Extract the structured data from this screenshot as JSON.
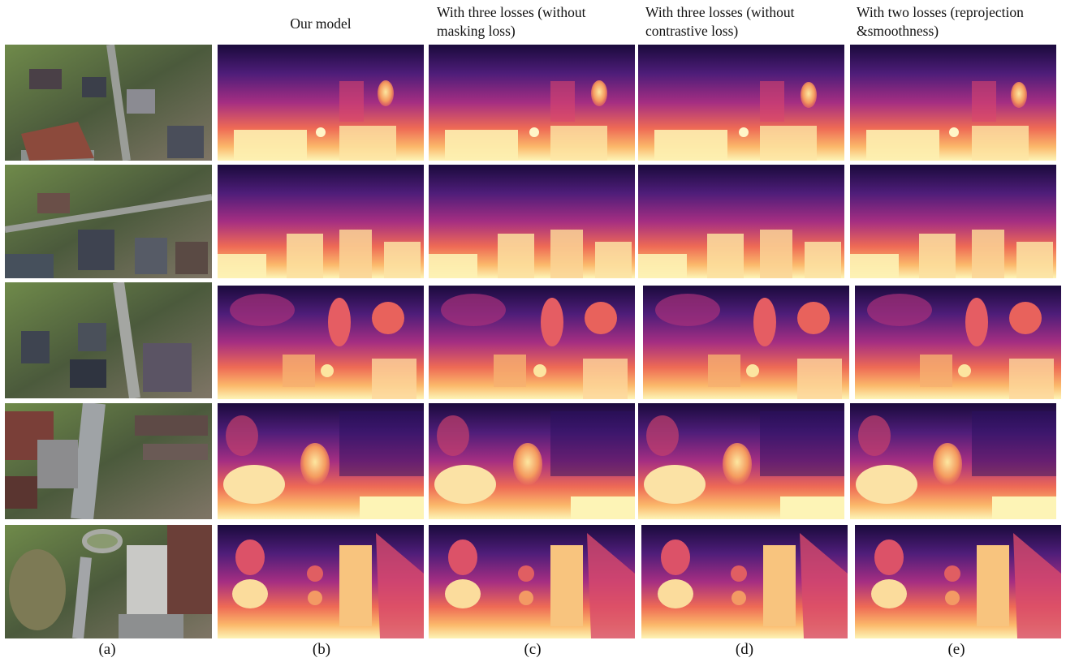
{
  "column_headers": {
    "b": "Our model",
    "c_line1": "With three losses (without",
    "c_line2": "masking loss)",
    "d_line1": "With three losses (without",
    "d_line2": "contrastive loss)",
    "e_line1": "With two losses (reprojection",
    "e_line2": "&smoothness)"
  },
  "captions": [
    "(a)",
    "(b)",
    "(c)",
    "(d)",
    "(e)"
  ],
  "colors": {
    "depth_far": "#1a0a3c",
    "depth_mid": "#b5367a",
    "depth_near": "#fdf4b6"
  }
}
